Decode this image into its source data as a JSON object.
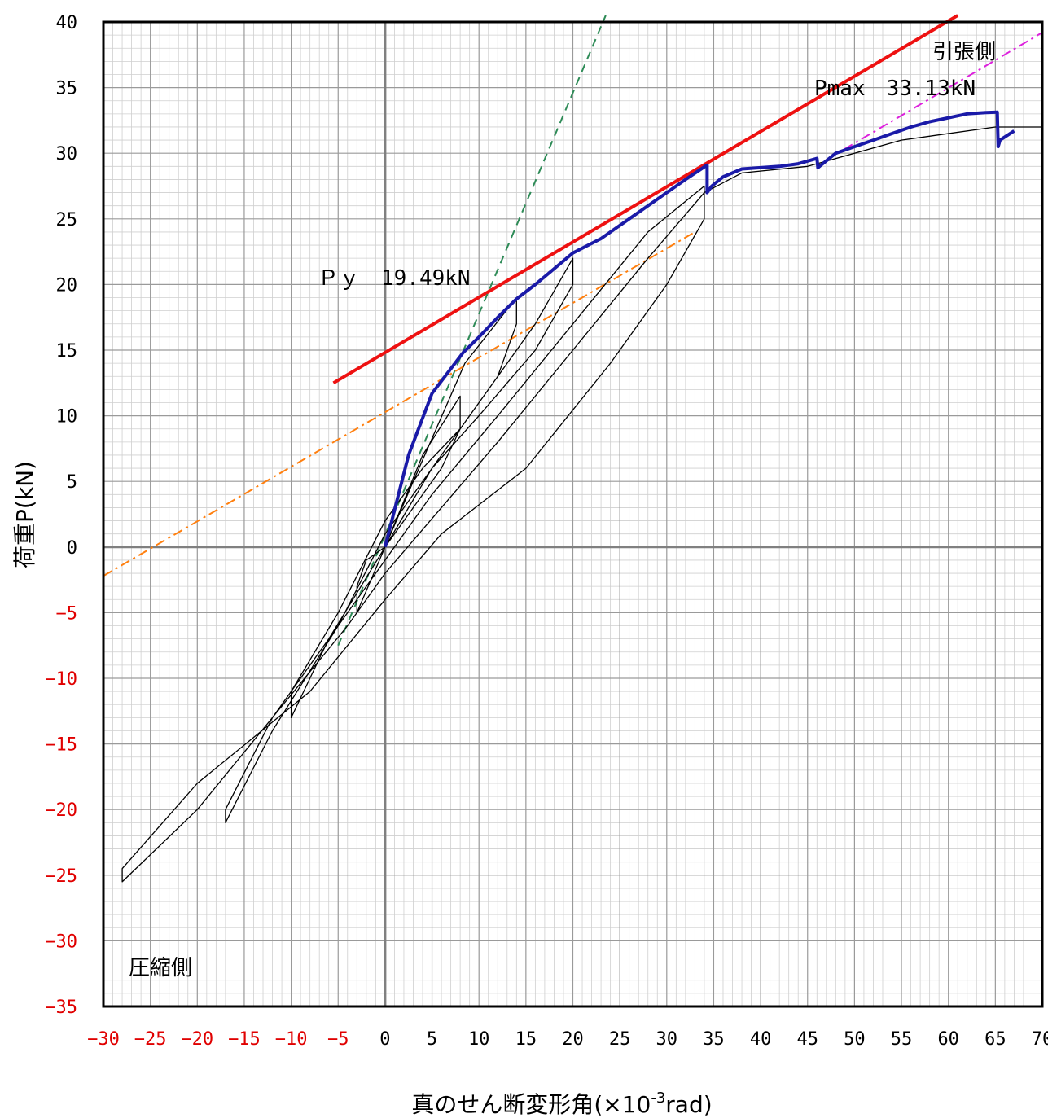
{
  "chart_data": {
    "type": "line",
    "xlabel": "真のせん断変形角(×10",
    "xlabel_sup": "-3",
    "xlabel_suffix": "rad)",
    "ylabel": "荷重P(kN)",
    "xlim": [
      -30,
      70
    ],
    "ylim": [
      -35,
      40
    ],
    "x_ticks": [
      -30,
      -25,
      -20,
      -15,
      -10,
      -5,
      0,
      5,
      10,
      15,
      20,
      25,
      30,
      35,
      40,
      45,
      50,
      55,
      60,
      65,
      70
    ],
    "y_ticks": [
      -35,
      -30,
      -25,
      -20,
      -15,
      -10,
      -5,
      0,
      5,
      10,
      15,
      20,
      25,
      30,
      35,
      40
    ],
    "tick_color_negative": "#e00000",
    "tick_color_positive": "#000000",
    "grid": true,
    "annotations": {
      "tension_side": "引張側",
      "compression_side": "圧縮側",
      "py": "Ｐｙ　19.49kN",
      "pmax": "Pmax　33.13kN"
    },
    "colors": {
      "envelope": "#1a1aa8",
      "hysteresis": "#000000",
      "tangent_line": "#ee1111",
      "initial_stiffness": "#2e8b57",
      "secant_line": "#ff7f0e",
      "post_peak_line": "#dd22dd",
      "zero_axes": "#808080"
    },
    "series": [
      {
        "role": "envelope",
        "x": [
          0,
          2.5,
          5,
          8.3,
          10,
          12,
          14,
          16,
          18,
          20,
          23,
          26,
          29,
          32,
          34.3,
          34.3,
          34.8,
          36,
          38,
          40,
          42,
          44,
          46,
          46.1,
          48,
          50,
          52,
          54,
          56,
          58,
          60,
          62,
          64,
          65.2,
          65.3,
          65.5,
          67
        ],
        "y": [
          0,
          7,
          11.7,
          14.8,
          16,
          17.5,
          18.9,
          20,
          21.2,
          22.4,
          23.5,
          25,
          26.5,
          28,
          29.1,
          27,
          27.5,
          28.2,
          28.8,
          28.9,
          29,
          29.2,
          29.6,
          28.9,
          30,
          30.5,
          31,
          31.5,
          32,
          32.4,
          32.7,
          33,
          33.1,
          33.13,
          30.5,
          31,
          31.7
        ]
      },
      {
        "role": "hysteresis",
        "x": [
          0,
          4,
          8,
          8,
          6,
          3,
          0,
          -2,
          -3,
          -3,
          0,
          3,
          8.5,
          14,
          14,
          12,
          8,
          4,
          0,
          -5,
          -10,
          -10,
          -6,
          0,
          5,
          10,
          16,
          20,
          20,
          16,
          10,
          5,
          0,
          -5,
          -12,
          -17,
          -17,
          -12,
          -5,
          0,
          5,
          12,
          20,
          28,
          34,
          34,
          30,
          24,
          15,
          6,
          0,
          -8,
          -20,
          -28,
          -28,
          -20,
          -12,
          -4,
          0,
          6,
          12,
          20,
          28,
          34,
          38,
          45,
          55,
          65,
          70
        ],
        "y": [
          0,
          7,
          11.5,
          9,
          6,
          3,
          0,
          -1,
          -3,
          -5,
          0,
          5,
          14,
          19,
          17,
          13,
          9,
          6,
          2,
          -5,
          -11,
          -13,
          -7,
          0,
          6,
          11,
          17,
          22,
          20,
          15,
          10,
          6,
          1,
          -6,
          -14,
          -21,
          -20,
          -13,
          -6,
          -1,
          4,
          10,
          17,
          24,
          27.5,
          25,
          20,
          14,
          6,
          1,
          -4,
          -11,
          -18,
          -24.5,
          -25.5,
          -20,
          -13,
          -6,
          -2,
          3,
          8,
          15,
          22,
          27,
          28.5,
          29,
          31,
          32,
          32
        ]
      }
    ],
    "reference_lines": [
      {
        "name": "tangent",
        "x": [
          -5.5,
          61
        ],
        "y": [
          12.5,
          40.5
        ]
      },
      {
        "name": "initial_stiffness",
        "x": [
          -5,
          23.5
        ],
        "y": [
          -7.5,
          40.5
        ]
      },
      {
        "name": "secant",
        "x": [
          -30,
          33
        ],
        "y": [
          -2.2,
          24
        ]
      },
      {
        "name": "post_peak",
        "x": [
          47,
          70
        ],
        "y": [
          29.5,
          39.2
        ]
      }
    ]
  }
}
